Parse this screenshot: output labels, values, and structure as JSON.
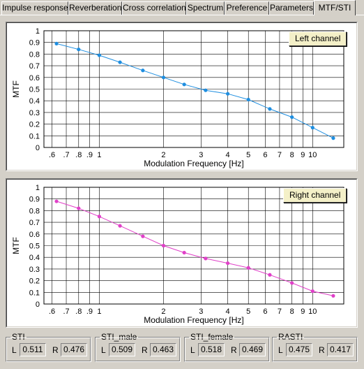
{
  "tabs": [
    {
      "label": "Impulse response",
      "active": false
    },
    {
      "label": "Reverberation",
      "active": false
    },
    {
      "label": "Cross correlation",
      "active": false
    },
    {
      "label": "Spectrum",
      "active": false
    },
    {
      "label": "Preference",
      "active": false
    },
    {
      "label": "Parameters",
      "active": false
    },
    {
      "label": "MTF/STI",
      "active": true
    }
  ],
  "chart_data": [
    {
      "type": "line",
      "legend_label": "Left channel",
      "xlabel": "Modulation Frequency [Hz]",
      "ylabel": "MTF",
      "x_scale": "log",
      "xlim": [
        0.55,
        14.0
      ],
      "ylim": [
        0,
        1
      ],
      "grid": true,
      "color": "#1e8ee0",
      "x_ticks": [
        ".6",
        ".7",
        ".8",
        ".9",
        "1",
        "2",
        "3",
        "4",
        "5",
        "6",
        "7",
        "8",
        "9",
        "10"
      ],
      "y_ticks": [
        "0",
        "0.1",
        "0.2",
        "0.3",
        "0.4",
        "0.5",
        "0.6",
        "0.7",
        "0.8",
        "0.9",
        "1"
      ],
      "x": [
        0.63,
        0.8,
        1.0,
        1.25,
        1.6,
        2.0,
        2.5,
        3.15,
        4.0,
        5.0,
        6.3,
        8.0,
        10.0,
        12.5
      ],
      "y": [
        0.89,
        0.84,
        0.79,
        0.73,
        0.66,
        0.6,
        0.54,
        0.49,
        0.46,
        0.41,
        0.33,
        0.26,
        0.17,
        0.08
      ]
    },
    {
      "type": "line",
      "legend_label": "Right channel",
      "xlabel": "Modulation Frequency [Hz]",
      "ylabel": "MTF",
      "x_scale": "log",
      "xlim": [
        0.55,
        14.0
      ],
      "ylim": [
        0,
        1
      ],
      "grid": true,
      "color": "#e040c8",
      "x_ticks": [
        ".6",
        ".7",
        ".8",
        ".9",
        "1",
        "2",
        "3",
        "4",
        "5",
        "6",
        "7",
        "8",
        "9",
        "10"
      ],
      "y_ticks": [
        "0",
        "0.1",
        "0.2",
        "0.3",
        "0.4",
        "0.5",
        "0.6",
        "0.7",
        "0.8",
        "0.9",
        "1"
      ],
      "x": [
        0.63,
        0.8,
        1.0,
        1.25,
        1.6,
        2.0,
        2.5,
        3.15,
        4.0,
        5.0,
        6.3,
        8.0,
        10.0,
        12.5
      ],
      "y": [
        0.88,
        0.82,
        0.75,
        0.67,
        0.58,
        0.5,
        0.44,
        0.39,
        0.35,
        0.31,
        0.25,
        0.18,
        0.11,
        0.07
      ]
    }
  ],
  "results": [
    {
      "title": "STI",
      "L": "0.511",
      "R": "0.476"
    },
    {
      "title": "STI_male",
      "L": "0.509",
      "R": "0.463"
    },
    {
      "title": "STI_female",
      "L": "0.518",
      "R": "0.469"
    },
    {
      "title": "RASTI",
      "L": "0.475",
      "R": "0.417"
    }
  ],
  "labels": {
    "left": "L",
    "right": "R"
  }
}
